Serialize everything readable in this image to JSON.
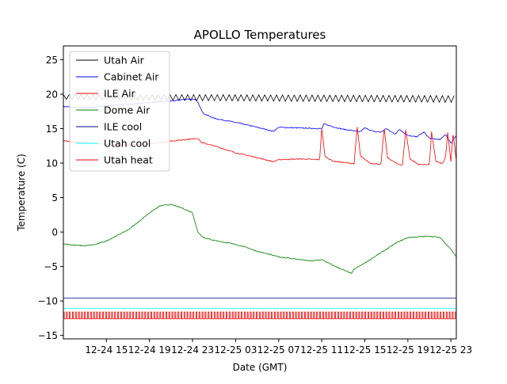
{
  "chart_data": {
    "type": "line",
    "title": "APOLLO Temperatures",
    "xlabel": "Date (GMT)",
    "ylabel": "Temperature (C)",
    "x_unit": "hours since 12-24 11:00 GMT",
    "xlim": [
      0,
      36.5
    ],
    "ylim": [
      -15.5,
      27
    ],
    "grid": false,
    "legend_position": "upper-left",
    "x_ticks": [
      {
        "x": 4,
        "label": "12-24 15"
      },
      {
        "x": 8,
        "label": "12-24 19"
      },
      {
        "x": 12,
        "label": "12-24 23"
      },
      {
        "x": 16,
        "label": "12-25 03"
      },
      {
        "x": 20,
        "label": "12-25 07"
      },
      {
        "x": 24,
        "label": "12-25 11"
      },
      {
        "x": 28,
        "label": "12-25 15"
      },
      {
        "x": 32,
        "label": "12-25 19"
      },
      {
        "x": 36,
        "label": "12-25 23"
      }
    ],
    "y_ticks": [
      {
        "y": 25,
        "label": "25"
      },
      {
        "y": 20,
        "label": "20"
      },
      {
        "y": 15,
        "label": "15"
      },
      {
        "y": 10,
        "label": "10"
      },
      {
        "y": 5,
        "label": "5"
      },
      {
        "y": 0,
        "label": "0"
      },
      {
        "y": -5,
        "label": "−5"
      },
      {
        "y": -10,
        "label": "−10"
      },
      {
        "y": -15,
        "label": "−15"
      }
    ],
    "series": [
      {
        "name": "Utah Air",
        "color": "#000000",
        "style": "sawtooth",
        "x": [
          0,
          12,
          36.5
        ],
        "center": [
          19.6,
          19.5,
          19.3
        ],
        "amplitude": [
          0.35,
          0.45,
          0.5
        ],
        "period_hours": 0.55
      },
      {
        "name": "Cabinet Air",
        "color": "#0000ff",
        "x": [
          0,
          2,
          4,
          6,
          8,
          10,
          11.5,
          12.3,
          12.6,
          13,
          14,
          16,
          18,
          19.5,
          20,
          22,
          24,
          24.2,
          25,
          26,
          27,
          27.5,
          28,
          28.8,
          29.5,
          30,
          30.8,
          31.2,
          32,
          32.8,
          33.5,
          34,
          35,
          35.5,
          36,
          36.5
        ],
        "y": [
          18.2,
          18.0,
          18.3,
          18.5,
          18.8,
          19.0,
          19.3,
          19.2,
          18.5,
          17.2,
          16.5,
          15.9,
          15.2,
          14.6,
          15.2,
          15.1,
          15.0,
          15.7,
          15.3,
          14.9,
          14.7,
          14.5,
          15.1,
          14.6,
          14.5,
          15.0,
          14.2,
          14.9,
          14.0,
          13.8,
          14.5,
          13.6,
          13.4,
          14.2,
          12.9,
          14.0
        ]
      },
      {
        "name": "ILE Air",
        "color": "#ff0000",
        "x": [
          0,
          2,
          4,
          6,
          8,
          10,
          12.5,
          12.8,
          14,
          16,
          18,
          19.5,
          20,
          22,
          23.8,
          24.0,
          24.3,
          25,
          26,
          27,
          27.3,
          27.6,
          28.5,
          29.5,
          29.8,
          30.1,
          31,
          31.5,
          31.8,
          32.2,
          33,
          34,
          34.2,
          34.6,
          35.2,
          35.5,
          35.7,
          36,
          36.2,
          36.5
        ],
        "y": [
          13.2,
          13.0,
          12.7,
          12.6,
          12.8,
          13.2,
          13.6,
          13.0,
          12.5,
          11.5,
          10.8,
          10.2,
          10.5,
          10.6,
          10.5,
          15.0,
          11.0,
          10.3,
          10.1,
          9.9,
          15.2,
          11.0,
          10.0,
          9.8,
          15.1,
          10.8,
          9.9,
          9.7,
          14.8,
          10.6,
          9.8,
          9.8,
          14.5,
          10.3,
          9.9,
          10.8,
          14.4,
          10.2,
          14.4,
          10.3
        ]
      },
      {
        "name": "Dome Air",
        "color": "#008000",
        "x": [
          0,
          1,
          2,
          3,
          4,
          5,
          6,
          7,
          8,
          9,
          10,
          11,
          12,
          12.3,
          12.5,
          13,
          14,
          15,
          16,
          17,
          18,
          19,
          20,
          22,
          23,
          24,
          25,
          26,
          26.8,
          27,
          28,
          29,
          30,
          31,
          32,
          33,
          34,
          35,
          36,
          36.5
        ],
        "y": [
          -1.7,
          -1.9,
          -2.0,
          -1.8,
          -1.3,
          -0.5,
          0.3,
          1.5,
          2.8,
          3.8,
          4.0,
          3.5,
          2.8,
          1.0,
          0.0,
          -0.8,
          -1.2,
          -1.5,
          -1.8,
          -2.2,
          -2.8,
          -3.2,
          -3.6,
          -4.0,
          -4.2,
          -4.0,
          -4.8,
          -5.5,
          -6.0,
          -5.4,
          -4.5,
          -3.5,
          -2.5,
          -1.5,
          -0.8,
          -0.7,
          -0.6,
          -0.8,
          -2.5,
          -3.6
        ]
      },
      {
        "name": "ILE cool",
        "color": "#00008b",
        "x": [
          0,
          36.5
        ],
        "y": [
          -9.6,
          -9.6
        ]
      },
      {
        "name": "Utah cool",
        "color": "#00ffff",
        "x": [
          0,
          36.5
        ],
        "y": [
          -11.1,
          -11.1
        ]
      },
      {
        "name": "Utah heat",
        "color": "#ff0000",
        "style": "pulse",
        "low": -12.6,
        "high": -11.6,
        "period_hours": 0.28,
        "x": [
          0,
          36.5
        ]
      }
    ]
  }
}
